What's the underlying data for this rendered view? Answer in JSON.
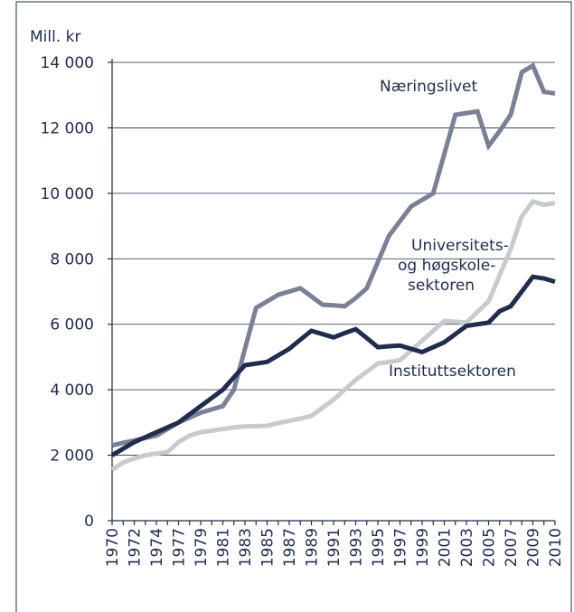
{
  "chart_data": {
    "type": "line",
    "y_label": "Mill. kr",
    "categories": [
      "1970",
      null,
      "1972",
      null,
      "1974",
      null,
      "1977",
      null,
      "1979",
      null,
      "1981",
      null,
      "1983",
      null,
      "1985",
      null,
      "1987",
      null,
      "1989",
      null,
      "1991",
      null,
      "1993",
      null,
      "1995",
      null,
      "1997",
      null,
      "1999",
      null,
      "2001",
      null,
      "2003",
      null,
      "2005",
      null,
      "2007",
      null,
      "2009",
      null,
      "2010"
    ],
    "series": [
      {
        "name": "Næringslivet",
        "color": "#7a8196",
        "values": [
          2300,
          2380,
          2450,
          2530,
          2600,
          2800,
          3000,
          3150,
          3300,
          3400,
          3500,
          4000,
          5250,
          6500,
          6700,
          6900,
          7000,
          7100,
          6850,
          6600,
          6580,
          6550,
          6800,
          7100,
          7900,
          8700,
          9150,
          9600,
          9800,
          10000,
          11200,
          12400,
          12450,
          12500,
          11450,
          11900,
          12400,
          13700,
          13900,
          13100,
          13050
        ]
      },
      {
        "name": "Universitets-\nog høgskole-\nsektoren",
        "color": "#c8cace",
        "values": [
          1550,
          1780,
          1900,
          2000,
          2050,
          2100,
          2400,
          2600,
          2700,
          2750,
          2800,
          2850,
          2880,
          2890,
          2900,
          2980,
          3050,
          3120,
          3200,
          3450,
          3700,
          4000,
          4300,
          4550,
          4800,
          4850,
          4900,
          5200,
          5500,
          5800,
          6100,
          6080,
          6050,
          6380,
          6700,
          7500,
          8300,
          9300,
          9750,
          9650,
          9700
        ]
      },
      {
        "name": "Instituttsektoren",
        "color": "#1f2d4e",
        "values": [
          2000,
          2200,
          2400,
          2550,
          2700,
          2850,
          3000,
          3250,
          3500,
          3750,
          4000,
          4380,
          4750,
          4800,
          4850,
          5050,
          5250,
          5530,
          5800,
          5700,
          5600,
          5730,
          5850,
          5580,
          5300,
          5330,
          5350,
          5250,
          5150,
          5300,
          5450,
          5700,
          5950,
          6000,
          6050,
          6400,
          6550,
          7000,
          7450,
          7400,
          7300
        ]
      }
    ],
    "ylim": [
      0,
      14000
    ],
    "yticks": [
      0,
      {
        "value": 2000,
        "label": "2 000"
      },
      {
        "value": 4000,
        "label": "4 000"
      },
      {
        "value": 6000,
        "label": "6 000"
      },
      {
        "value": 8000,
        "label": "8 000"
      },
      {
        "value": 10000,
        "label": "10 000"
      },
      {
        "value": 12000,
        "label": "12 000"
      },
      {
        "value": 14000,
        "label": "14 000"
      }
    ],
    "grid": true
  }
}
